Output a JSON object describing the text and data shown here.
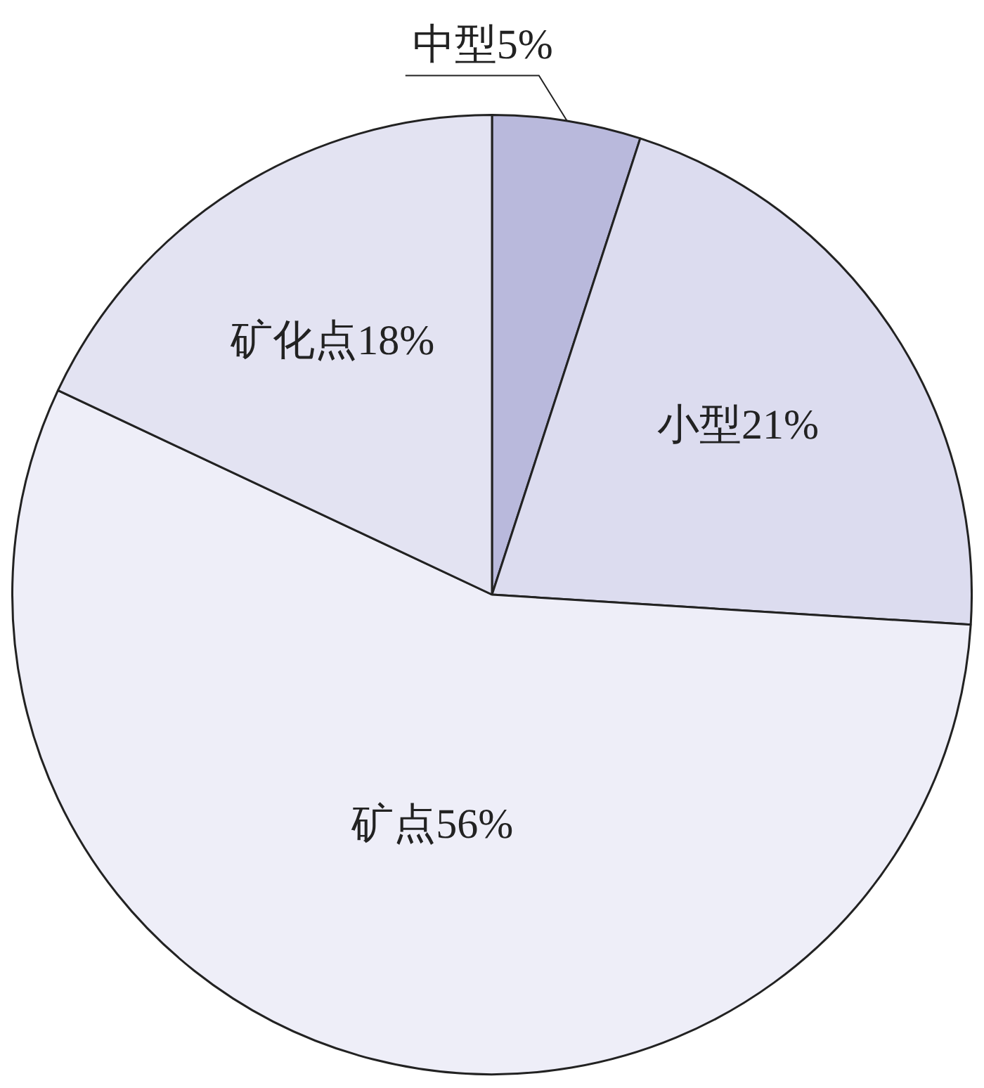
{
  "chart_data": {
    "type": "pie",
    "categories": [
      "中型",
      "小型",
      "矿点",
      "矿化点"
    ],
    "values": [
      5,
      21,
      56,
      18
    ],
    "value_labels": [
      "5%",
      "21%",
      "56%",
      "18%"
    ],
    "colors": [
      "#b9b9dc",
      "#dcdcef",
      "#eeeef8",
      "#e3e3f2"
    ],
    "legend": false
  }
}
